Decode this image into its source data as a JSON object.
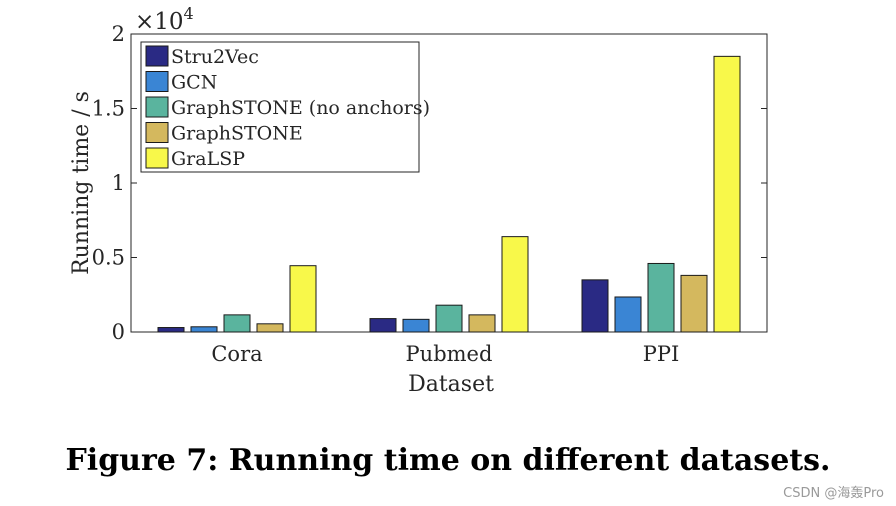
{
  "chart_data": {
    "type": "bar",
    "categories": [
      "Cora",
      "Pubmed",
      "PPI"
    ],
    "series": [
      {
        "name": "Stru2Vec",
        "color": "#2a2a84",
        "values": [
          300,
          900,
          3500
        ]
      },
      {
        "name": "GCN",
        "color": "#3a85d4",
        "values": [
          350,
          850,
          2350
        ]
      },
      {
        "name": "GraphSTONE (no anchors)",
        "color": "#5ab49e",
        "values": [
          1150,
          1800,
          4600
        ]
      },
      {
        "name": "GraphSTONE",
        "color": "#d4b85e",
        "values": [
          550,
          1150,
          3800
        ]
      },
      {
        "name": "GraLSP",
        "color": "#f8f84a",
        "values": [
          4450,
          6400,
          18500
        ]
      }
    ],
    "ylim": [
      0,
      20000
    ],
    "yticks": [
      {
        "value": 0,
        "label": "0"
      },
      {
        "value": 5000,
        "label": "0.5"
      },
      {
        "value": 10000,
        "label": "1"
      },
      {
        "value": 15000,
        "label": "1.5"
      },
      {
        "value": 20000,
        "label": "2"
      }
    ],
    "exponent_label": "×10",
    "exponent_power": "4",
    "xlabel": "Dataset",
    "ylabel": "Running time / s",
    "legend_position": "top-left"
  },
  "caption": "Figure 7: Running time on different datasets.",
  "watermark": "CSDN @海轰Pro"
}
